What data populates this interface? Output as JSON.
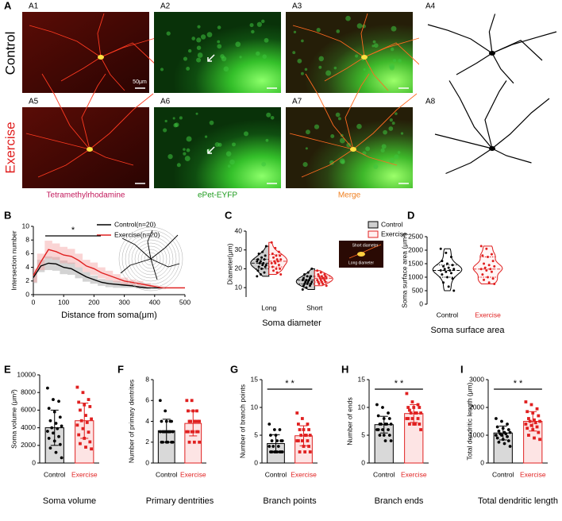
{
  "panel_a": {
    "label": "A",
    "images": [
      "A1",
      "A2",
      "A3",
      "A4",
      "A5",
      "A6",
      "A7",
      "A8"
    ],
    "rows": [
      "Control",
      "Exercise"
    ],
    "scale_bar": "50μm",
    "channels": [
      "Tetramethylrhodamine",
      "ePet-EYFP",
      "Merge"
    ]
  },
  "chart_data": [
    {
      "type": "line",
      "panel": "B",
      "ylabel": "Intersection number",
      "xlabel": "Distance from soma(μm)",
      "significance": "*",
      "x": [
        0,
        25,
        50,
        75,
        100,
        125,
        150,
        175,
        200,
        225,
        250,
        275,
        300,
        325,
        350,
        375,
        400,
        425,
        450,
        475,
        500
      ],
      "xlim": [
        0,
        500
      ],
      "xticks": [
        0,
        100,
        200,
        300,
        400,
        500
      ],
      "ylim": [
        0,
        10
      ],
      "yticks": [
        0,
        2,
        4,
        6,
        8,
        10
      ],
      "series": [
        {
          "name": "Control(n=20)",
          "color": "#000000",
          "band_color": "#9e9e9e",
          "values": [
            2.5,
            4.2,
            4.6,
            4.5,
            4.0,
            3.8,
            3.2,
            2.6,
            2.2,
            1.8,
            1.6,
            1.5,
            1.4,
            1.3,
            1.1,
            1.0,
            1.0,
            1.0,
            null,
            null,
            null
          ],
          "errors": [
            0.8,
            0.9,
            1.0,
            1.0,
            1.0,
            0.9,
            0.8,
            0.7,
            0.6,
            0.5,
            0.5,
            0.5,
            0.4,
            0.3,
            0.2,
            0.2,
            0.1,
            0.1,
            null,
            null,
            null
          ]
        },
        {
          "name": "Exercise(n=20)",
          "color": "#e02020",
          "band_color": "#f4a0a0",
          "values": [
            2.8,
            4.8,
            6.6,
            6.3,
            5.8,
            5.6,
            5.0,
            4.2,
            3.8,
            3.2,
            2.8,
            2.4,
            2.0,
            1.8,
            1.6,
            1.4,
            1.2,
            1.0,
            1.0,
            1.0,
            1.0
          ],
          "errors": [
            1.0,
            1.2,
            1.3,
            1.2,
            1.2,
            1.1,
            1.0,
            0.9,
            0.9,
            0.8,
            0.7,
            0.6,
            0.5,
            0.4,
            0.4,
            0.3,
            0.2,
            0.2,
            0.1,
            0.1,
            0.1
          ]
        }
      ]
    },
    {
      "type": "violin",
      "panel": "C",
      "ylabel": "Diameter(μm)",
      "title": "Soma diameter",
      "categories": [
        "Long",
        "Short"
      ],
      "ylim": [
        5,
        40
      ],
      "yticks": [
        10,
        20,
        30,
        40
      ],
      "inset_labels": [
        "Short diameter",
        "Long diameter"
      ],
      "series": [
        {
          "name": "Control",
          "color": "#000000",
          "fill": "#cfcfcf",
          "points": [
            [
              32,
              29,
              28,
              27,
              26,
              25,
              25,
              24,
              24,
              23,
              23,
              22,
              22,
              21,
              21,
              20,
              19,
              18,
              17,
              16
            ],
            [
              20,
              18,
              17,
              16,
              16,
              15,
              15,
              14,
              14,
              14,
              13,
              13,
              13,
              12,
              12,
              12,
              11,
              11,
              10,
              9
            ]
          ],
          "quartiles": [
            [
              20,
              23,
              25
            ],
            [
              12,
              14,
              16
            ]
          ]
        },
        {
          "name": "Exercise",
          "color": "#e02020",
          "fill": "#fff0f0",
          "points": [
            [
              34,
              31,
              29,
              28,
              27,
              27,
              26,
              25,
              25,
              24,
              24,
              23,
              23,
              22,
              21,
              20,
              20,
              19,
              18,
              17
            ],
            [
              19,
              18,
              17,
              17,
              16,
              16,
              16,
              15,
              15,
              15,
              15,
              14,
              14,
              14,
              13,
              13,
              13,
              12,
              12,
              11
            ]
          ],
          "quartiles": [
            [
              21,
              24,
              27.5
            ],
            [
              13,
              15,
              16
            ]
          ]
        }
      ]
    },
    {
      "type": "violin",
      "panel": "D",
      "ylabel": "Soma surface area (μm²)",
      "title": "Soma surface area",
      "categories": [
        "Control",
        "Exercise"
      ],
      "ylim": [
        0,
        2500
      ],
      "yticks": [
        0,
        500,
        1000,
        1500,
        2000,
        2500
      ],
      "colors": [
        "#000000",
        "#e02020"
      ],
      "fills": [
        "#ffffff",
        "#fff5f5"
      ],
      "points": [
        [
          2050,
          1900,
          1750,
          1600,
          1500,
          1450,
          1400,
          1350,
          1300,
          1300,
          1250,
          1250,
          1200,
          1150,
          1100,
          1000,
          950,
          800,
          650,
          500
        ],
        [
          2150,
          2050,
          1850,
          1800,
          1750,
          1600,
          1500,
          1450,
          1400,
          1350,
          1300,
          1300,
          1250,
          1200,
          1100,
          1000,
          950,
          900,
          800,
          750
        ]
      ],
      "quartiles": [
        [
          1000,
          1250,
          1450
        ],
        [
          1000,
          1300,
          1750
        ]
      ]
    },
    {
      "type": "bar",
      "panel": "E",
      "ylabel": "Soma volume (μm³)",
      "title": "Soma volume",
      "categories": [
        "Control",
        "Exercise"
      ],
      "ylim": [
        0,
        10000
      ],
      "yticks": [
        0,
        2000,
        4000,
        6000,
        8000,
        10000
      ],
      "colors": [
        "#000000",
        "#e02020"
      ],
      "fills": [
        "#d9d9d9",
        "#fde4e4"
      ],
      "values": [
        4000,
        4800
      ],
      "errors": [
        2000,
        2000
      ],
      "points": [
        [
          8500,
          7200,
          7000,
          6200,
          5800,
          5200,
          4800,
          4500,
          4200,
          4000,
          3900,
          3600,
          3400,
          3000,
          2800,
          2500,
          2100,
          1700,
          1200,
          600
        ],
        [
          8600,
          8000,
          7200,
          6900,
          6600,
          6400,
          6000,
          5400,
          5000,
          4800,
          4600,
          4300,
          3900,
          3500,
          3200,
          2800,
          2400,
          2200,
          1800,
          1600
        ]
      ]
    },
    {
      "type": "bar",
      "panel": "F",
      "ylabel": "Number of primary dentrites",
      "title": "Primary dentrities",
      "categories": [
        "Control",
        "Exercise"
      ],
      "ylim": [
        0,
        8
      ],
      "yticks": [
        0,
        2,
        4,
        6,
        8
      ],
      "colors": [
        "#000000",
        "#e02020"
      ],
      "fills": [
        "#d9d9d9",
        "#fde4e4"
      ],
      "values": [
        3.1,
        3.8
      ],
      "errors": [
        1.1,
        1.2
      ],
      "points": [
        [
          6,
          5,
          4,
          4,
          4,
          4,
          3,
          3,
          3,
          3,
          3,
          3,
          3,
          3,
          2,
          2,
          2,
          2,
          2,
          2
        ],
        [
          6,
          6,
          5,
          5,
          5,
          4,
          4,
          4,
          4,
          4,
          4,
          3,
          3,
          3,
          3,
          3,
          3,
          2,
          2,
          2
        ]
      ]
    },
    {
      "type": "bar",
      "panel": "G",
      "ylabel": "Number of branch points",
      "title": "Branch points",
      "significance": "* *",
      "categories": [
        "Control",
        "Exercise"
      ],
      "ylim": [
        0,
        15
      ],
      "yticks": [
        0,
        5,
        10,
        15
      ],
      "colors": [
        "#000000",
        "#e02020"
      ],
      "fills": [
        "#d9d9d9",
        "#fde4e4"
      ],
      "values": [
        3.5,
        4.9
      ],
      "errors": [
        1.6,
        1.8
      ],
      "points": [
        [
          7,
          6,
          6,
          5,
          5,
          4,
          4,
          4,
          4,
          3,
          3,
          3,
          2,
          2,
          2,
          2,
          2,
          2,
          2,
          2
        ],
        [
          9,
          8,
          7,
          7,
          6,
          6,
          6,
          5,
          5,
          5,
          5,
          4,
          4,
          4,
          4,
          3,
          3,
          2,
          2,
          2
        ]
      ]
    },
    {
      "type": "bar",
      "panel": "H",
      "ylabel": "Number of ends",
      "title": "Branch ends",
      "significance": "* *",
      "categories": [
        "Control",
        "Exercise"
      ],
      "ylim": [
        0,
        15
      ],
      "yticks": [
        0,
        5,
        10,
        15
      ],
      "colors": [
        "#000000",
        "#e02020"
      ],
      "fills": [
        "#d9d9d9",
        "#fde4e4"
      ],
      "values": [
        6.9,
        8.9
      ],
      "errors": [
        1.5,
        1.6
      ],
      "points": [
        [
          10.5,
          10,
          9,
          8.5,
          8,
          8,
          7,
          7,
          7,
          7,
          7,
          6,
          6,
          6,
          6,
          5,
          5,
          5,
          4,
          4
        ],
        [
          12.5,
          11,
          10.5,
          10,
          10,
          10,
          9.5,
          9,
          9,
          9,
          9,
          8,
          8,
          8,
          8,
          7,
          7,
          7,
          7,
          6
        ]
      ]
    },
    {
      "type": "bar",
      "panel": "I",
      "ylabel": "Total dendritic length (μm)",
      "title": "Total dendritic length",
      "significance": "* *",
      "categories": [
        "Control",
        "Exercise"
      ],
      "ylim": [
        0,
        3000
      ],
      "yticks": [
        0,
        1000,
        2000,
        3000
      ],
      "colors": [
        "#000000",
        "#e02020"
      ],
      "fills": [
        "#d9d9d9",
        "#fde4e4"
      ],
      "values": [
        1080,
        1500
      ],
      "errors": [
        250,
        350
      ],
      "points": [
        [
          1600,
          1500,
          1400,
          1300,
          1250,
          1200,
          1150,
          1100,
          1100,
          1050,
          1050,
          1000,
          1000,
          950,
          900,
          850,
          800,
          750,
          700,
          600
        ],
        [
          2200,
          2100,
          1950,
          1850,
          1800,
          1700,
          1600,
          1550,
          1500,
          1500,
          1450,
          1400,
          1350,
          1300,
          1250,
          1200,
          1100,
          1000,
          900,
          850
        ]
      ]
    }
  ]
}
